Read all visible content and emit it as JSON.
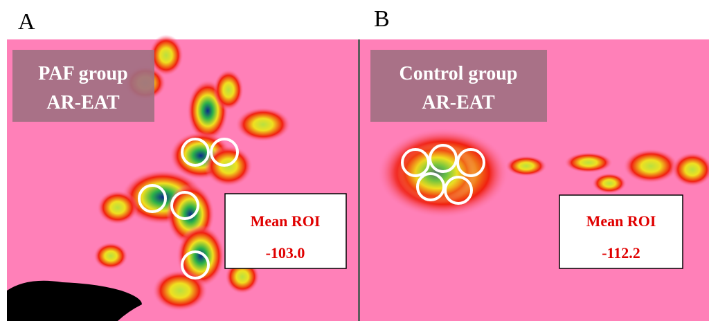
{
  "panels": [
    {
      "letter": "A",
      "label_lines": [
        "PAF group",
        "AR-EAT"
      ],
      "roi_title": "Mean ROI",
      "roi_value": "-103.0"
    },
    {
      "letter": "B",
      "label_lines": [
        "Control group",
        "AR-EAT"
      ],
      "roi_title": "Mean ROI",
      "roi_value": "-112.2"
    }
  ]
}
